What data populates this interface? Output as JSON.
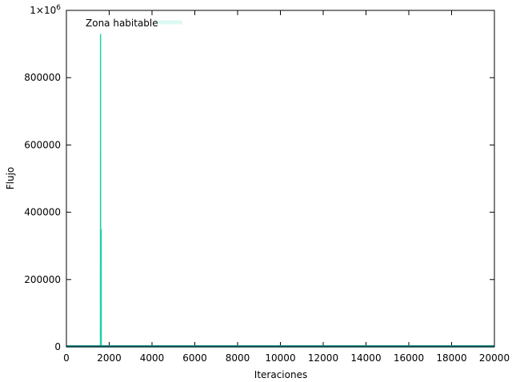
{
  "chart_data": {
    "type": "line",
    "title": "",
    "xlabel": "Iteraciones",
    "ylabel": "Flujo",
    "xlim": [
      0,
      20000
    ],
    "ylim": [
      0,
      1000000
    ],
    "grid": false,
    "legend_position": "top-left",
    "x_ticks": [
      {
        "value": 0,
        "label": "0"
      },
      {
        "value": 2000,
        "label": "2000"
      },
      {
        "value": 4000,
        "label": "4000"
      },
      {
        "value": 6000,
        "label": "6000"
      },
      {
        "value": 8000,
        "label": "8000"
      },
      {
        "value": 10000,
        "label": "10000"
      },
      {
        "value": 12000,
        "label": "12000"
      },
      {
        "value": 14000,
        "label": "14000"
      },
      {
        "value": 16000,
        "label": "16000"
      },
      {
        "value": 18000,
        "label": "18000"
      },
      {
        "value": 20000,
        "label": "20000"
      }
    ],
    "y_ticks": [
      {
        "value": 0,
        "label": "0"
      },
      {
        "value": 200000,
        "label": "200000"
      },
      {
        "value": 400000,
        "label": "400000"
      },
      {
        "value": 600000,
        "label": "600000"
      },
      {
        "value": 800000,
        "label": "800000"
      }
    ],
    "y_top_label": {
      "base": "1×10",
      "exponent": "6"
    },
    "series": [
      {
        "name": "Zona habitable",
        "color": "#1fd1a8",
        "points": [
          [
            0,
            0
          ],
          [
            1500,
            0
          ],
          [
            1590,
            0
          ],
          [
            1595,
            930000
          ],
          [
            1600,
            0
          ],
          [
            1620,
            0
          ],
          [
            1625,
            350000
          ],
          [
            1630,
            0
          ],
          [
            1640,
            0
          ],
          [
            5000,
            0
          ],
          [
            10000,
            0
          ],
          [
            15000,
            0
          ],
          [
            20000,
            0
          ]
        ]
      }
    ],
    "baseline_color": "#1a8a8a"
  }
}
